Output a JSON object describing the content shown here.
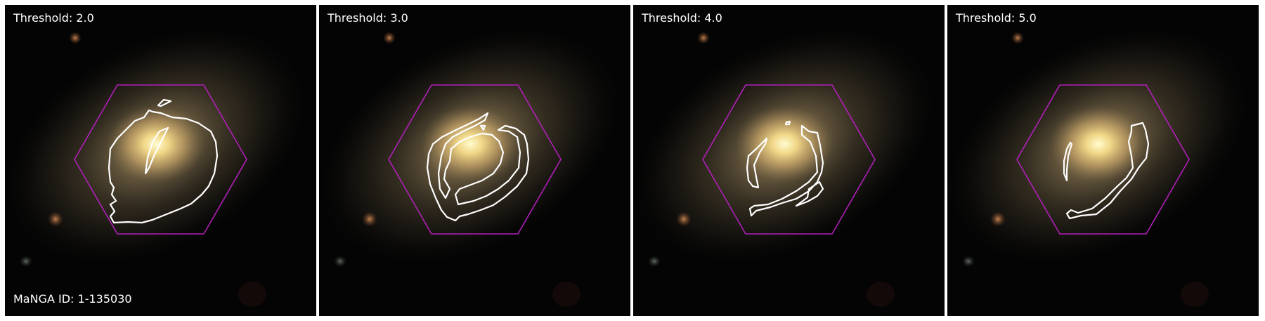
{
  "panels": [
    {
      "id": "t2",
      "label": "Threshold: 2.0"
    },
    {
      "id": "t3",
      "label": "Threshold: 3.0"
    },
    {
      "id": "t4",
      "label": "Threshold: 4.0"
    },
    {
      "id": "t5",
      "label": "Threshold: 5.0"
    }
  ],
  "manga_id_label": "MaNGA ID: 1-135030",
  "colors": {
    "background": "#050505",
    "galaxy_core": "#fff6b0",
    "galaxy_halo": "#8a7a55",
    "ifu_hexagon": "#b01fb8",
    "contour": "#ffffff"
  },
  "icons": [
    "galaxy-image",
    "ifu-hexagon",
    "contour-outline"
  ]
}
